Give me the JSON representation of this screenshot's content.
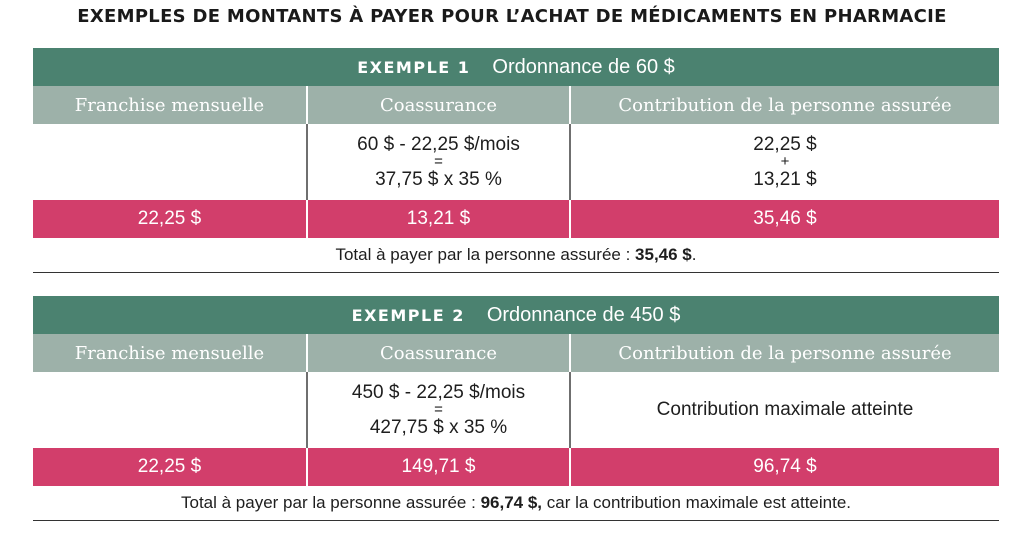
{
  "title": "EXEMPLES DE MONTANTS À PAYER POUR L’ACHAT DE MÉDICAMENTS EN PHARMACIE",
  "columns": {
    "deductible": "Franchise mensuelle",
    "coinsurance": "Coassurance",
    "contribution": "Contribution de la personne assurée"
  },
  "examples": [
    {
      "label": "EXEMPLE 1",
      "prescription": "Ordonnance de 60 $",
      "calc_coinsurance": {
        "line1": "60 $ - 22,25 $/mois",
        "op": "=",
        "line2": "37,75 $ x 35 %"
      },
      "calc_contribution": {
        "line1": "22,25 $",
        "op": "+",
        "line2": "13,21 $"
      },
      "results": {
        "deductible": "22,25 $",
        "coinsurance": "13,21 $",
        "contribution": "35,46 $"
      },
      "total": {
        "prefix": "Total à payer par la personne assurée :",
        "amount": "35,46 $",
        "suffix": "."
      }
    },
    {
      "label": "EXEMPLE 2",
      "prescription": "Ordonnance de 450 $",
      "calc_coinsurance": {
        "line1": "450 $ - 22,25 $/mois",
        "op": "=",
        "line2": "427,75 $ x 35 %"
      },
      "calc_contribution_text": "Contribution maximale atteinte",
      "results": {
        "deductible": "22,25 $",
        "coinsurance": "149,71 $",
        "contribution": "96,74 $"
      },
      "total": {
        "prefix": "Total à payer par la personne assurée :",
        "amount": "96,74 $,",
        "suffix": "car la contribution maximale est atteinte."
      }
    }
  ],
  "colors": {
    "header_green": "#4b8270",
    "column_header_gray_green": "#9db1a9",
    "result_pink": "#d23e6b"
  }
}
